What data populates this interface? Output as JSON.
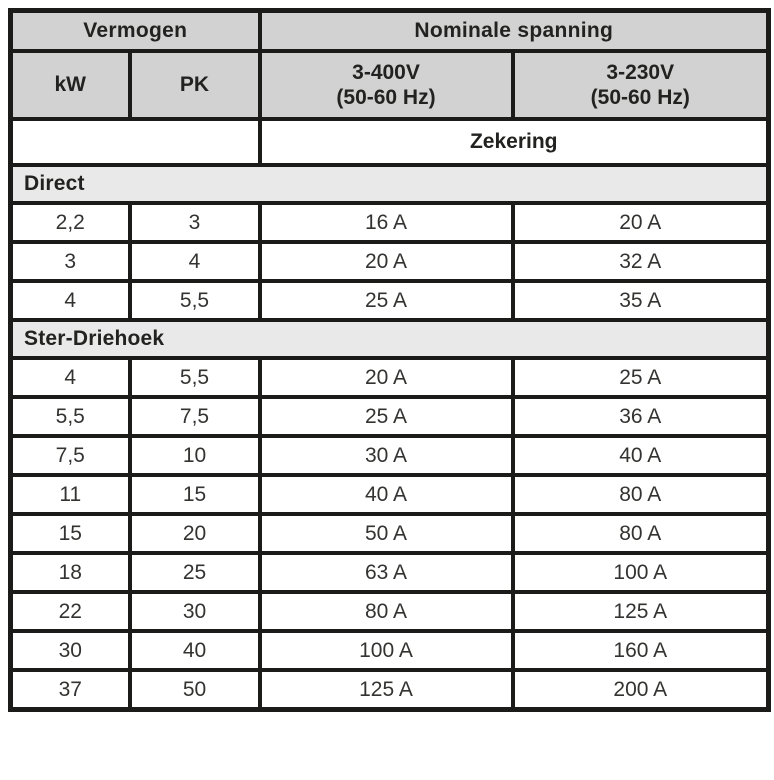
{
  "table": {
    "header": {
      "power_group": "Vermogen",
      "voltage_group": "Nominale spanning",
      "col_kw": "kW",
      "col_pk": "PK",
      "col_400_line1": "3-400V",
      "col_400_line2": "(50-60 Hz)",
      "col_230_line1": "3-230V",
      "col_230_line2": "(50-60 Hz)",
      "fuse_label": "Zekering"
    },
    "sections": [
      {
        "title": "Direct",
        "rows": [
          [
            "2,2",
            "3",
            "16 A",
            "20 A"
          ],
          [
            "3",
            "4",
            "20 A",
            "32 A"
          ],
          [
            "4",
            "5,5",
            "25 A",
            "35 A"
          ]
        ]
      },
      {
        "title": "Ster-Driehoek",
        "rows": [
          [
            "4",
            "5,5",
            "20 A",
            "25 A"
          ],
          [
            "5,5",
            "7,5",
            "25 A",
            "36 A"
          ],
          [
            "7,5",
            "10",
            "30 A",
            "40 A"
          ],
          [
            "11",
            "15",
            "40 A",
            "80 A"
          ],
          [
            "15",
            "20",
            "50 A",
            "80 A"
          ],
          [
            "18",
            "25",
            "63 A",
            "100 A"
          ],
          [
            "22",
            "30",
            "80 A",
            "125 A"
          ],
          [
            "30",
            "40",
            "100 A",
            "160 A"
          ],
          [
            "37",
            "50",
            "125 A",
            "200 A"
          ]
        ]
      }
    ],
    "colors": {
      "header_bg": "#d2d2d3",
      "section_bg": "#e9e9e9",
      "border": "#1b1b19",
      "text": "#222220"
    }
  }
}
